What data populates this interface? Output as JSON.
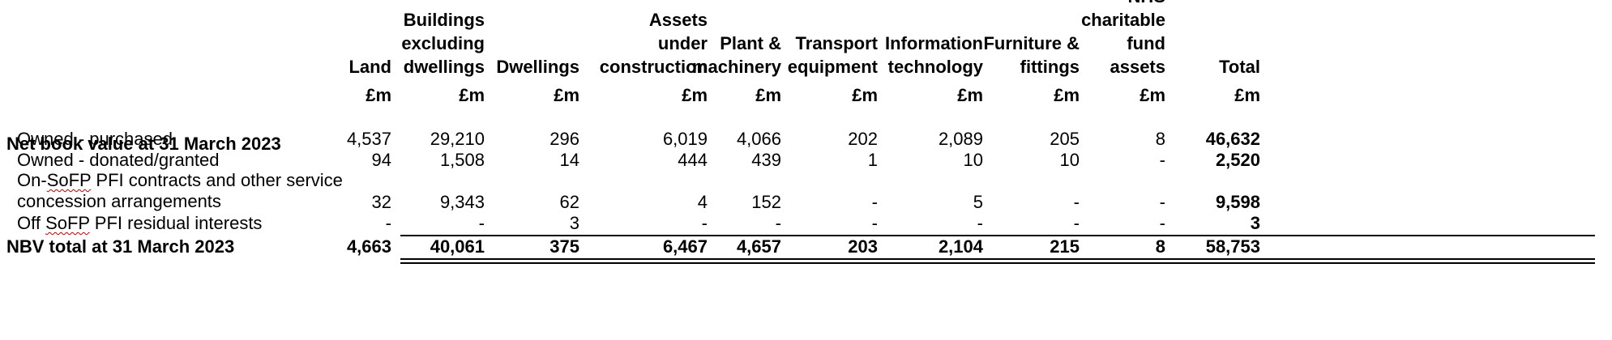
{
  "table": {
    "columns": [
      {
        "lines": [
          "Land"
        ],
        "unit": "£m"
      },
      {
        "lines": [
          "Buildings",
          "excluding",
          "dwellings"
        ],
        "unit": "£m"
      },
      {
        "lines": [
          "Dwellings"
        ],
        "unit": "£m"
      },
      {
        "lines": [
          "Assets",
          "under",
          "construction"
        ],
        "unit": "£m"
      },
      {
        "lines": [
          "Plant &",
          "machinery"
        ],
        "unit": "£m"
      },
      {
        "lines": [
          "Transport",
          "equipment"
        ],
        "unit": "£m"
      },
      {
        "lines": [
          "Information",
          "technology"
        ],
        "unit": "£m"
      },
      {
        "lines": [
          "Furniture &",
          "fittings"
        ],
        "unit": "£m"
      },
      {
        "lines": [
          "NHS",
          "charitable",
          "fund",
          "assets"
        ],
        "unit": "£m"
      },
      {
        "lines": [
          "Total"
        ],
        "unit": "£m"
      }
    ],
    "section_title": "Net book value at 31 March 2023",
    "rows": [
      {
        "label": "Owned - purchased",
        "values": [
          "4,537",
          "29,210",
          "296",
          "6,019",
          "4,066",
          "202",
          "2,089",
          "205",
          "8",
          "46,632"
        ]
      },
      {
        "label": "Owned - donated/granted",
        "values": [
          "94",
          "1,508",
          "14",
          "444",
          "439",
          "1",
          "10",
          "10",
          "-",
          "2,520"
        ]
      },
      {
        "label_prefix": "On-",
        "label_squiggle": "SoFP",
        "label_suffix": " PFI contracts and other service",
        "label_line2": "concession arrangements",
        "values": [
          "32",
          "9,343",
          "62",
          "4",
          "152",
          "-",
          "5",
          "-",
          "-",
          "9,598"
        ]
      },
      {
        "label_prefix": "Off ",
        "label_squiggle": "SoFP",
        "label_suffix": " PFI residual interests",
        "values": [
          "-",
          "-",
          "3",
          "-",
          "-",
          "-",
          "-",
          "-",
          "-",
          "3"
        ]
      }
    ],
    "total_row": {
      "label": "NBV total at 31 March 2023",
      "values": [
        "4,663",
        "40,061",
        "375",
        "6,467",
        "4,657",
        "203",
        "2,104",
        "215",
        "8",
        "58,753"
      ]
    }
  }
}
